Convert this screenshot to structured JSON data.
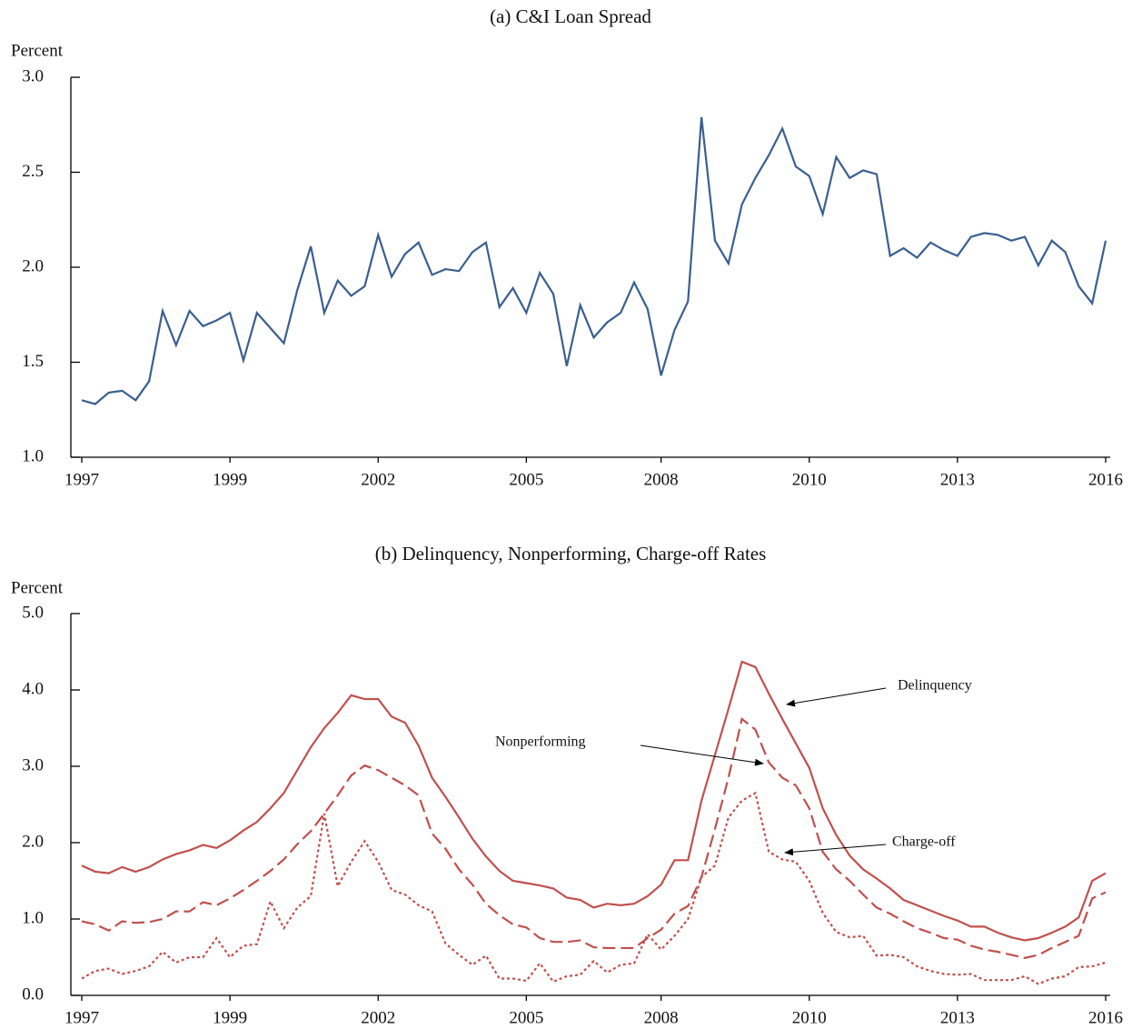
{
  "chart_data": [
    {
      "type": "line",
      "title": "(a)  C&I Loan Spread",
      "ylabel": "Percent",
      "categories": [
        "1997",
        null,
        null,
        null,
        null,
        null,
        null,
        null,
        null,
        null,
        null,
        "1999",
        null,
        null,
        null,
        null,
        null,
        null,
        null,
        null,
        null,
        null,
        "2002",
        null,
        null,
        null,
        null,
        null,
        null,
        null,
        null,
        null,
        null,
        "2005",
        null,
        null,
        null,
        null,
        null,
        null,
        null,
        null,
        null,
        "2008",
        null,
        null,
        null,
        null,
        null,
        null,
        null,
        null,
        null,
        null,
        "2010",
        null,
        null,
        null,
        null,
        null,
        null,
        null,
        null,
        null,
        null,
        "2013",
        null,
        null,
        null,
        null,
        null,
        null,
        null,
        null,
        null,
        null,
        "2016"
      ],
      "series": [
        {
          "name": "C&I Loan Spread",
          "color": "#3a5f8f",
          "dash": "solid",
          "values": [
            1.3,
            1.28,
            1.34,
            1.35,
            1.3,
            1.4,
            1.77,
            1.59,
            1.77,
            1.69,
            1.72,
            1.76,
            1.51,
            1.76,
            1.68,
            1.6,
            1.88,
            2.11,
            1.76,
            1.93,
            1.85,
            1.9,
            2.17,
            1.95,
            2.07,
            2.13,
            1.96,
            1.99,
            1.98,
            2.08,
            2.13,
            1.79,
            1.89,
            1.76,
            1.97,
            1.86,
            1.48,
            1.8,
            1.63,
            1.71,
            1.76,
            1.92,
            1.78,
            1.43,
            1.67,
            1.82,
            2.79,
            2.14,
            2.02,
            2.33,
            2.47,
            2.59,
            2.73,
            2.53,
            2.48,
            2.28,
            2.58,
            2.47,
            2.51,
            2.49,
            2.06,
            2.1,
            2.05,
            2.13,
            2.09,
            2.06,
            2.16,
            2.18,
            2.17,
            2.14,
            2.16,
            2.01,
            2.14,
            2.08,
            1.9,
            1.81,
            2.14
          ]
        }
      ],
      "ylim": [
        1,
        3
      ],
      "yticks": [
        {
          "value": 1,
          "label": "1.0"
        },
        1.5,
        {
          "value": 2,
          "label": "2.0"
        },
        2.5,
        {
          "value": 3,
          "label": "3.0"
        }
      ]
    },
    {
      "type": "line",
      "title": "(b)  Delinquency, Nonperforming, Charge-off Rates",
      "ylabel": "Percent",
      "categories": [
        "1997",
        null,
        null,
        null,
        null,
        null,
        null,
        null,
        null,
        null,
        null,
        "1999",
        null,
        null,
        null,
        null,
        null,
        null,
        null,
        null,
        null,
        null,
        "2002",
        null,
        null,
        null,
        null,
        null,
        null,
        null,
        null,
        null,
        null,
        "2005",
        null,
        null,
        null,
        null,
        null,
        null,
        null,
        null,
        null,
        "2008",
        null,
        null,
        null,
        null,
        null,
        null,
        null,
        null,
        null,
        null,
        "2010",
        null,
        null,
        null,
        null,
        null,
        null,
        null,
        null,
        null,
        null,
        "2013",
        null,
        null,
        null,
        null,
        null,
        null,
        null,
        null,
        null,
        null,
        "2016"
      ],
      "series": [
        {
          "name": "Delinquency",
          "color": "#c0504d",
          "dash": "solid",
          "values": [
            1.7,
            1.62,
            1.6,
            1.68,
            1.62,
            1.68,
            1.78,
            1.85,
            1.9,
            1.97,
            1.93,
            2.03,
            2.16,
            2.27,
            2.45,
            2.65,
            2.95,
            3.25,
            3.5,
            3.7,
            3.93,
            3.88,
            3.88,
            3.65,
            3.57,
            3.27,
            2.85,
            2.6,
            2.33,
            2.05,
            1.82,
            1.63,
            1.5,
            1.47,
            1.44,
            1.4,
            1.28,
            1.25,
            1.15,
            1.2,
            1.18,
            1.2,
            1.3,
            1.45,
            1.77,
            1.77,
            2.55,
            3.15,
            3.75,
            4.37,
            4.3,
            3.95,
            3.62,
            3.3,
            2.98,
            2.45,
            2.1,
            1.83,
            1.65,
            1.53,
            1.4,
            1.25,
            1.18,
            1.11,
            1.04,
            0.98,
            0.9,
            0.9,
            0.82,
            0.76,
            0.72,
            0.75,
            0.82,
            0.9,
            1.02,
            1.5,
            1.6
          ]
        },
        {
          "name": "Nonperforming",
          "color": "#c0504d",
          "dash": "dashed",
          "values": [
            0.97,
            0.93,
            0.85,
            0.97,
            0.95,
            0.96,
            1.0,
            1.1,
            1.1,
            1.22,
            1.18,
            1.27,
            1.38,
            1.5,
            1.63,
            1.78,
            1.98,
            2.15,
            2.38,
            2.62,
            2.88,
            3.01,
            2.95,
            2.85,
            2.75,
            2.62,
            2.12,
            1.92,
            1.65,
            1.45,
            1.2,
            1.05,
            0.93,
            0.89,
            0.75,
            0.7,
            0.7,
            0.72,
            0.63,
            0.62,
            0.62,
            0.62,
            0.75,
            0.86,
            1.07,
            1.17,
            1.55,
            2.18,
            2.85,
            3.62,
            3.48,
            3.05,
            2.85,
            2.75,
            2.45,
            1.88,
            1.65,
            1.5,
            1.32,
            1.15,
            1.07,
            0.97,
            0.88,
            0.82,
            0.75,
            0.73,
            0.65,
            0.6,
            0.57,
            0.53,
            0.49,
            0.53,
            0.62,
            0.7,
            0.78,
            1.27,
            1.35
          ]
        },
        {
          "name": "Charge-off",
          "color": "#c0504d",
          "dash": "dotted",
          "values": [
            0.22,
            0.32,
            0.35,
            0.28,
            0.32,
            0.38,
            0.57,
            0.43,
            0.5,
            0.5,
            0.75,
            0.5,
            0.65,
            0.67,
            1.23,
            0.88,
            1.15,
            1.3,
            2.38,
            1.43,
            1.75,
            2.02,
            1.75,
            1.38,
            1.32,
            1.18,
            1.1,
            0.68,
            0.53,
            0.4,
            0.52,
            0.22,
            0.22,
            0.19,
            0.42,
            0.18,
            0.25,
            0.27,
            0.45,
            0.3,
            0.4,
            0.42,
            0.8,
            0.6,
            0.78,
            1.0,
            1.55,
            1.7,
            2.33,
            2.55,
            2.65,
            1.88,
            1.78,
            1.75,
            1.5,
            1.08,
            0.83,
            0.76,
            0.78,
            0.52,
            0.53,
            0.5,
            0.38,
            0.32,
            0.28,
            0.27,
            0.28,
            0.2,
            0.2,
            0.2,
            0.25,
            0.15,
            0.22,
            0.25,
            0.37,
            0.38,
            0.43
          ]
        }
      ],
      "annotations": [
        "Delinquency",
        "Nonperforming",
        "Charge-off"
      ],
      "ylim": [
        0,
        5
      ],
      "yticks": [
        {
          "value": 0,
          "label": "0.0"
        },
        {
          "value": 1,
          "label": "1.0"
        },
        {
          "value": 2,
          "label": "2.0"
        },
        {
          "value": 3,
          "label": "3.0"
        },
        {
          "value": 4,
          "label": "4.0"
        },
        {
          "value": 5,
          "label": "5.0"
        }
      ]
    }
  ]
}
